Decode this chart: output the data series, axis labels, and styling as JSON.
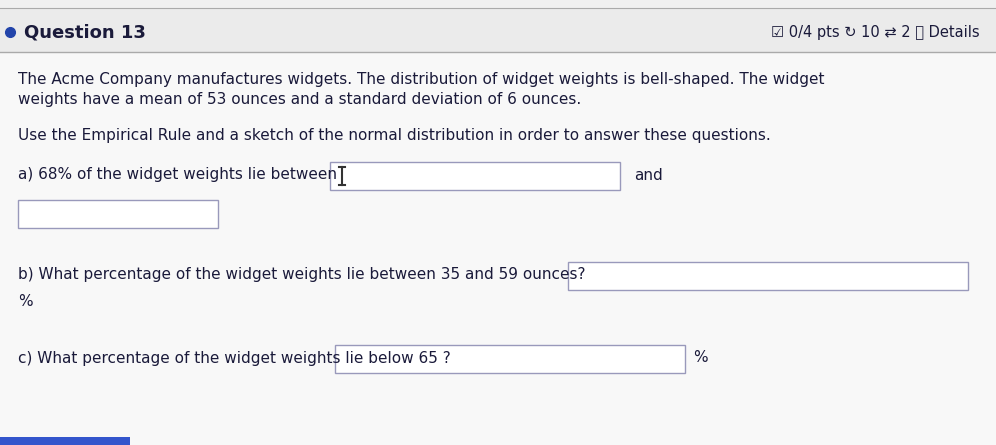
{
  "bg_color": "#f0f0f0",
  "content_bg": "#f5f5f5",
  "question_label": "Question 13",
  "header_right": "☑ 0/4 pts ↻ 10 ⇄ 2 ⓘ Details",
  "paragraph1_line1": "The Acme Company manufactures widgets. The distribution of widget weights is bell-shaped. The widget",
  "paragraph1_line2": "weights have a mean of 53 ounces and a standard deviation of 6 ounces.",
  "paragraph2": "Use the Empirical Rule and a sketch of the normal distribution in order to answer these questions.",
  "qa_label": "a) 68% of the widget weights lie between",
  "qa_and": "and",
  "qb_label": "b) What percentage of the widget weights lie between 35 and 59 ounces?",
  "qb_suffix": "%",
  "qc_label": "c) What percentage of the widget weights lie below 65 ?",
  "qc_suffix": "%",
  "box_color": "#ffffff",
  "box_border": "#9999bb",
  "text_color": "#1a1a3a",
  "header_sep_color": "#aaaaaa",
  "bullet_color": "#2244aa",
  "blue_bar_color": "#3355cc"
}
